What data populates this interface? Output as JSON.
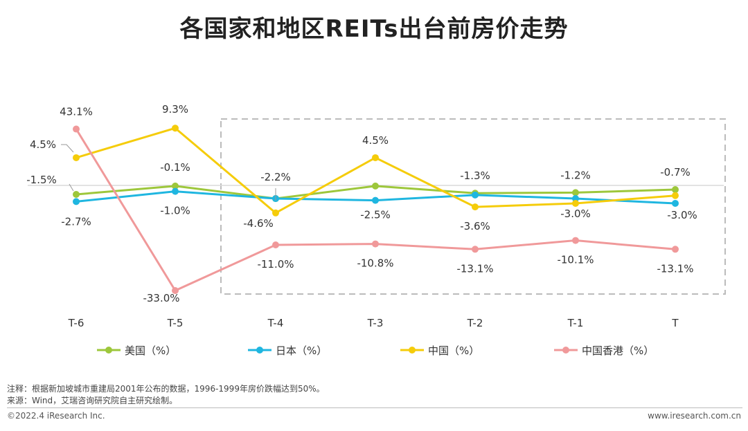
{
  "title": "各国家和地区REITs出台前房价走势",
  "chart_data": {
    "type": "line",
    "categories": [
      "T-6",
      "T-5",
      "T-4",
      "T-3",
      "T-2",
      "T-1",
      "T"
    ],
    "baseline": 0,
    "series": [
      {
        "name": "美国（%）",
        "color": "#9dc73b",
        "values": [
          -1.5,
          -0.1,
          -2.2,
          -0.1,
          -1.3,
          -1.2,
          -0.7
        ],
        "labels": [
          "-1.5%",
          "-0.1%",
          "-2.2%",
          "",
          "-1.3%",
          "-1.2%",
          "-0.7%"
        ]
      },
      {
        "name": "日本（%）",
        "color": "#1fb6e0",
        "values": [
          -2.7,
          -1.0,
          -2.2,
          -2.5,
          -1.6,
          -2.2,
          -3.0
        ],
        "labels": [
          "-2.7%",
          "-1.0%",
          "",
          "-2.5%",
          "",
          "",
          "-3.0%"
        ]
      },
      {
        "name": "中国（%）",
        "color": "#f5cc0a",
        "values": [
          4.5,
          9.3,
          -4.6,
          4.5,
          -3.6,
          -3.0,
          -1.7
        ],
        "labels": [
          "4.5%",
          "9.3%",
          "-4.6%",
          "4.5%",
          "-3.6%",
          "-3.0%",
          ""
        ]
      },
      {
        "name": "中国香港（%）",
        "color": "#f0999a",
        "values": [
          43.1,
          -33.0,
          -11.0,
          -10.8,
          -13.1,
          -10.1,
          -13.1
        ],
        "labels": [
          "43.1%",
          "-33.0%",
          "-11.0%",
          "-10.8%",
          "-13.1%",
          "-10.1%",
          "-13.1%"
        ]
      }
    ]
  },
  "notes": {
    "note": "注释：根据新加坡城市重建局2001年公布的数据，1996-1999年房价跌幅达到50%。",
    "source": "来源：Wind，艾瑞咨询研究院自主研究绘制。"
  },
  "footer": {
    "copyright": "©2022.4 iResearch Inc.",
    "website": "www.iresearch.com.cn"
  }
}
